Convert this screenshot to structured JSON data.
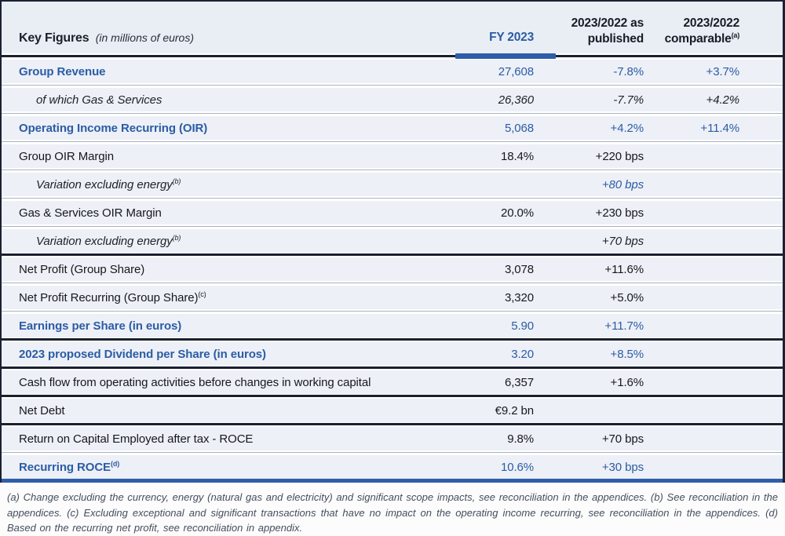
{
  "header": {
    "title": "Key Figures",
    "title_note": "(in millions of euros)",
    "col_fy": "FY 2023",
    "col_published_line1": "2023/2022 as",
    "col_published_line2": "published",
    "col_comparable_line1": "2023/2022",
    "col_comparable_line2": "comparable",
    "col_comparable_sup": "(a)"
  },
  "table": {
    "rows": [
      {
        "label": "Group Revenue",
        "sup": "",
        "value": "27,608",
        "published": "-7.8%",
        "comparable": "+3.7%",
        "style": "blue",
        "indent": false,
        "sep": "thin",
        "published_blue": false
      },
      {
        "label": "of which Gas & Services",
        "sup": "",
        "value": "26,360",
        "published": "-7.7%",
        "comparable": "+4.2%",
        "style": "italic",
        "indent": true,
        "sep": "thin",
        "published_blue": false
      },
      {
        "label": "Operating Income Recurring (OIR)",
        "sup": "",
        "value": "5,068",
        "published": "+4.2%",
        "comparable": "+11.4%",
        "style": "blue",
        "indent": false,
        "sep": "thin",
        "published_blue": false
      },
      {
        "label": "Group OIR Margin",
        "sup": "",
        "value": "18.4%",
        "published": "+220 bps",
        "comparable": "",
        "style": "plain",
        "indent": false,
        "sep": "thin",
        "published_blue": false
      },
      {
        "label": "Variation excluding energy",
        "sup": "(b)",
        "value": "",
        "published": "+80 bps",
        "comparable": "",
        "style": "italic",
        "indent": true,
        "sep": "thin",
        "published_blue": true
      },
      {
        "label": "Gas & Services OIR Margin",
        "sup": "",
        "value": "20.0%",
        "published": "+230 bps",
        "comparable": "",
        "style": "plain",
        "indent": false,
        "sep": "thin",
        "published_blue": false
      },
      {
        "label": "Variation excluding energy",
        "sup": "(b)",
        "value": "",
        "published": "+70 bps",
        "comparable": "",
        "style": "italic",
        "indent": true,
        "sep": "thin",
        "published_blue": false
      },
      {
        "label": "Net Profit (Group Share)",
        "sup": "",
        "value": "3,078",
        "published": "+11.6%",
        "comparable": "",
        "style": "plain",
        "indent": false,
        "sep": "thick",
        "published_blue": false
      },
      {
        "label": "Net Profit Recurring (Group Share)",
        "sup": "(c)",
        "value": "3,320",
        "published": "+5.0%",
        "comparable": "",
        "style": "plain",
        "indent": false,
        "sep": "thin",
        "published_blue": false
      },
      {
        "label": "Earnings per Share (in euros)",
        "sup": "",
        "value": "5.90",
        "published": "+11.7%",
        "comparable": "",
        "style": "blue",
        "indent": false,
        "sep": "thin",
        "published_blue": false
      },
      {
        "label": "2023 proposed Dividend per Share (in euros)",
        "sup": "",
        "value": "3.20",
        "published": "+8.5%",
        "comparable": "",
        "style": "blue",
        "indent": false,
        "sep": "thick",
        "published_blue": false
      },
      {
        "label": "Cash flow from operating activities before changes in working capital",
        "sup": "",
        "value": "6,357",
        "published": "+1.6%",
        "comparable": "",
        "style": "plain",
        "indent": false,
        "sep": "thick",
        "published_blue": false
      },
      {
        "label": "Net Debt",
        "sup": "",
        "value": "€9.2 bn",
        "published": "",
        "comparable": "",
        "style": "plain",
        "indent": false,
        "sep": "thick",
        "published_blue": false
      },
      {
        "label": "Return on Capital Employed after tax - ROCE",
        "sup": "",
        "value": "9.8%",
        "published": "+70 bps",
        "comparable": "",
        "style": "plain",
        "indent": false,
        "sep": "thick",
        "published_blue": false
      },
      {
        "label": "Recurring ROCE",
        "sup": "(d)",
        "value": "10.6%",
        "published": "+30 bps",
        "comparable": "",
        "style": "blue",
        "indent": false,
        "sep": "thin",
        "published_blue": false
      }
    ]
  },
  "footnotes": {
    "text": "(a) Change excluding the currency, energy (natural gas and electricity) and significant scope impacts, see reconciliation in the appendices. (b) See reconciliation in the appendices. (c) Excluding exceptional and significant transactions that have no impact on the operating income recurring, see reconciliation in the appendices. (d) Based on the recurring net profit, see reconciliation in appendix."
  },
  "colors": {
    "accent_blue": "#2b5ca6",
    "border_blue": "#2e5ea9",
    "dark_line": "#1a2130",
    "row_bg": "#edf0f6",
    "header_bg": "#e9eef5"
  }
}
